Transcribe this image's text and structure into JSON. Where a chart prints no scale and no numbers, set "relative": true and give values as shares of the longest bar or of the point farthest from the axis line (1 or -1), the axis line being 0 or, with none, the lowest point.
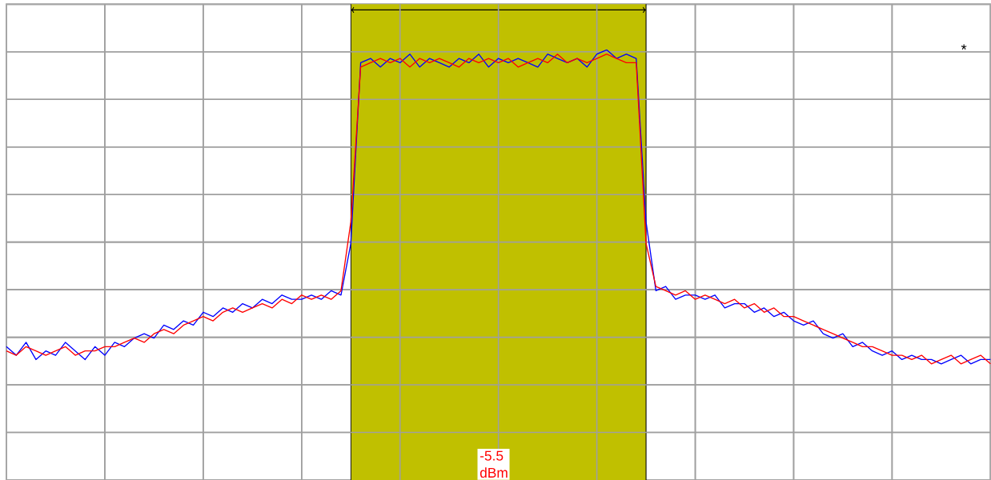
{
  "chart_data": {
    "type": "line",
    "relative": true,
    "grid": true,
    "categories": [
      null,
      null,
      null,
      null,
      null,
      null,
      null,
      null,
      null,
      null,
      null,
      null,
      null,
      null,
      null,
      null,
      null,
      null,
      null,
      null,
      null,
      null,
      null,
      null,
      null,
      null,
      null,
      null,
      null,
      null,
      null,
      null,
      null,
      null,
      null,
      null,
      null,
      null,
      null,
      null,
      null,
      null,
      null,
      null,
      null,
      null,
      null,
      null,
      null,
      null,
      null,
      null,
      null,
      null,
      null,
      null,
      null,
      null,
      null,
      null,
      null,
      null,
      null,
      null,
      null,
      null,
      null,
      null,
      null,
      null,
      null,
      null,
      null,
      null,
      null,
      null,
      null,
      null,
      null,
      null,
      null,
      null,
      null,
      null,
      null,
      null,
      null,
      null,
      null,
      null,
      null,
      null,
      null,
      null,
      null,
      null,
      null,
      null,
      null,
      null,
      null
    ],
    "series": [
      {
        "color": "#0000ff",
        "values": [
          0.31,
          0.29,
          0.32,
          0.28,
          0.3,
          0.29,
          0.32,
          0.3,
          0.28,
          0.31,
          0.29,
          0.32,
          0.31,
          0.33,
          0.34,
          0.33,
          0.36,
          0.35,
          0.37,
          0.36,
          0.39,
          0.38,
          0.4,
          0.39,
          0.41,
          0.4,
          0.42,
          0.41,
          0.43,
          0.42,
          0.42,
          0.43,
          0.42,
          0.44,
          0.43,
          0.55,
          0.97,
          0.98,
          0.96,
          0.98,
          0.97,
          0.99,
          0.96,
          0.98,
          0.97,
          0.96,
          0.98,
          0.97,
          0.99,
          0.96,
          0.98,
          0.97,
          0.98,
          0.97,
          0.96,
          0.99,
          0.98,
          0.97,
          0.98,
          0.96,
          0.99,
          1.0,
          0.98,
          0.99,
          0.98,
          0.6,
          0.44,
          0.45,
          0.42,
          0.43,
          0.43,
          0.42,
          0.43,
          0.4,
          0.41,
          0.41,
          0.39,
          0.4,
          0.38,
          0.39,
          0.37,
          0.36,
          0.37,
          0.34,
          0.33,
          0.34,
          0.31,
          0.32,
          0.3,
          0.29,
          0.3,
          0.28,
          0.29,
          0.28,
          0.28,
          0.27,
          0.28,
          0.29,
          0.27,
          0.28,
          0.28
        ]
      },
      {
        "color": "#ff0000",
        "values": [
          0.3,
          0.29,
          0.31,
          0.3,
          0.29,
          0.3,
          0.31,
          0.29,
          0.3,
          0.3,
          0.31,
          0.31,
          0.32,
          0.33,
          0.32,
          0.34,
          0.35,
          0.34,
          0.36,
          0.37,
          0.38,
          0.37,
          0.39,
          0.4,
          0.39,
          0.4,
          0.41,
          0.4,
          0.42,
          0.41,
          0.43,
          0.42,
          0.43,
          0.42,
          0.44,
          0.6,
          0.96,
          0.97,
          0.98,
          0.97,
          0.98,
          0.96,
          0.98,
          0.97,
          0.98,
          0.97,
          0.96,
          0.98,
          0.97,
          0.98,
          0.97,
          0.98,
          0.96,
          0.97,
          0.98,
          0.97,
          0.99,
          0.97,
          0.98,
          0.97,
          0.98,
          0.99,
          0.98,
          0.97,
          0.97,
          0.55,
          0.45,
          0.44,
          0.43,
          0.44,
          0.42,
          0.43,
          0.42,
          0.41,
          0.42,
          0.4,
          0.41,
          0.39,
          0.4,
          0.38,
          0.38,
          0.37,
          0.36,
          0.35,
          0.34,
          0.33,
          0.32,
          0.31,
          0.31,
          0.3,
          0.29,
          0.29,
          0.28,
          0.29,
          0.27,
          0.28,
          0.29,
          0.27,
          0.28,
          0.29,
          0.27
        ]
      }
    ],
    "annotations": [
      "-5.5 dBm",
      "*"
    ]
  }
}
